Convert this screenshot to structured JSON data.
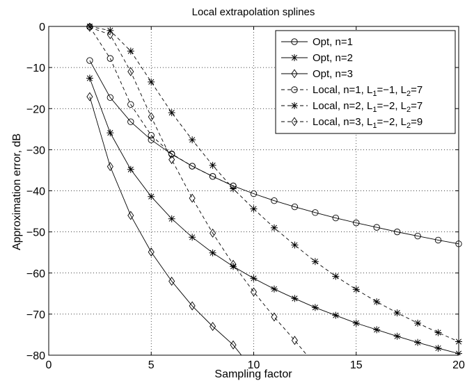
{
  "chart_data": {
    "type": "line",
    "title": "Local extrapolation splines",
    "xlabel": "Sampling factor",
    "ylabel": "Approximation error, dB",
    "xlim": [
      0,
      20
    ],
    "ylim": [
      -80,
      0
    ],
    "xticks": [
      0,
      5,
      10,
      15,
      20
    ],
    "yticks": [
      0,
      -10,
      -20,
      -30,
      -40,
      -50,
      -60,
      -70,
      -80
    ],
    "grid": true,
    "legend_position": "top-right",
    "series": [
      {
        "name": "Opt, n=1",
        "line": "solid",
        "marker": "circle",
        "x": [
          2,
          3,
          4,
          5,
          6,
          7,
          8,
          9,
          10,
          11,
          12,
          13,
          14,
          15,
          16,
          17,
          18,
          19,
          20
        ],
        "y": [
          -8.3,
          -17.3,
          -23.2,
          -27.6,
          -31.1,
          -34.0,
          -36.5,
          -38.8,
          -40.7,
          -42.4,
          -43.9,
          -45.3,
          -46.6,
          -47.8,
          -48.9,
          -50.0,
          -51.0,
          -52.0,
          -52.9
        ]
      },
      {
        "name": "Opt, n=2",
        "line": "solid",
        "marker": "star",
        "x": [
          2,
          3,
          4,
          5,
          6,
          7,
          8,
          9,
          10,
          11,
          12,
          13,
          14,
          15,
          16,
          17,
          18,
          19,
          20
        ],
        "y": [
          -12.6,
          -25.9,
          -34.8,
          -41.4,
          -46.8,
          -51.3,
          -55.1,
          -58.4,
          -61.3,
          -63.9,
          -66.2,
          -68.4,
          -70.3,
          -72.2,
          -73.8,
          -75.4,
          -76.9,
          -78.3,
          -79.6
        ]
      },
      {
        "name": "Opt, n=3",
        "line": "solid",
        "marker": "diamond",
        "x": [
          2,
          3,
          4,
          5,
          6,
          7,
          8,
          9,
          9.4
        ],
        "y": [
          -17.1,
          -34.1,
          -46.0,
          -54.9,
          -62.0,
          -68.0,
          -73.0,
          -77.5,
          -80
        ]
      },
      {
        "name": "Local, n=1, L_1=−1, L_2=7",
        "line": "dashed",
        "marker": "circle",
        "x": [
          2,
          3,
          4,
          5,
          6,
          7,
          8,
          9
        ],
        "y": [
          -0.1,
          -7.8,
          -19.0,
          -26.5,
          -31.0,
          -34.0,
          -36.5,
          -38.8
        ]
      },
      {
        "name": "Local, n=2, L_1=−2, L_2=7",
        "line": "dashed",
        "marker": "star",
        "x": [
          2,
          3,
          4,
          5,
          6,
          7,
          8,
          9,
          10,
          11,
          12,
          13,
          14,
          15,
          16,
          17,
          18,
          19,
          20
        ],
        "y": [
          0,
          -1.0,
          -6.0,
          -13.5,
          -21.0,
          -27.6,
          -33.8,
          -39.5,
          -44.4,
          -49.0,
          -53.2,
          -57.2,
          -60.8,
          -64.0,
          -67.0,
          -69.7,
          -72.2,
          -74.5,
          -76.7
        ]
      },
      {
        "name": "Local, n=3, L_1=−2, L_2=9",
        "line": "dashed",
        "marker": "diamond",
        "x": [
          2,
          3,
          4,
          5,
          6,
          7,
          8,
          9,
          10,
          11,
          12,
          12.6
        ],
        "y": [
          -0.2,
          -2.0,
          -11.0,
          -22.0,
          -32.4,
          -41.8,
          -50.3,
          -57.9,
          -64.6,
          -70.7,
          -76.4,
          -80
        ]
      }
    ],
    "legend": [
      {
        "base": "Opt, n=1"
      },
      {
        "base": "Opt, n=2"
      },
      {
        "base": "Opt, n=3"
      },
      {
        "base": "Local, n=1, L",
        "s1": "1",
        "v1": "=−1, L",
        "s2": "2",
        "v2": "=7"
      },
      {
        "base": "Local, n=2, L",
        "s1": "1",
        "v1": "=−2, L",
        "s2": "2",
        "v2": "=7"
      },
      {
        "base": "Local, n=3, L",
        "s1": "1",
        "v1": "=−2, L",
        "s2": "2",
        "v2": "=9"
      }
    ]
  }
}
